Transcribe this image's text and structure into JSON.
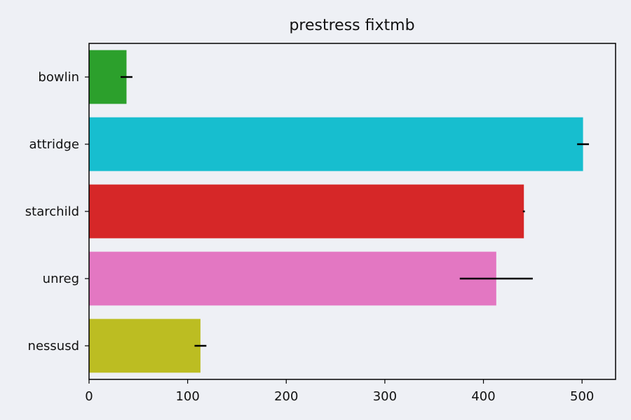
{
  "chart_data": {
    "type": "bar",
    "orientation": "horizontal",
    "title": "prestress fixtmb",
    "xlabel": "",
    "ylabel": "",
    "xlim": [
      0,
      534
    ],
    "xticks": [
      "0",
      "100",
      "200",
      "300",
      "400",
      "500"
    ],
    "grid": false,
    "categories": [
      "bowlin",
      "attridge",
      "starchild",
      "unreg",
      "nessusd"
    ],
    "values": [
      38,
      501,
      441,
      413,
      113
    ],
    "errors": [
      6,
      6,
      1,
      37,
      6
    ],
    "colors": [
      "#2ca02c",
      "#17becf",
      "#d62728",
      "#e377c2",
      "#bcbd22"
    ],
    "error_color": "#000000"
  }
}
